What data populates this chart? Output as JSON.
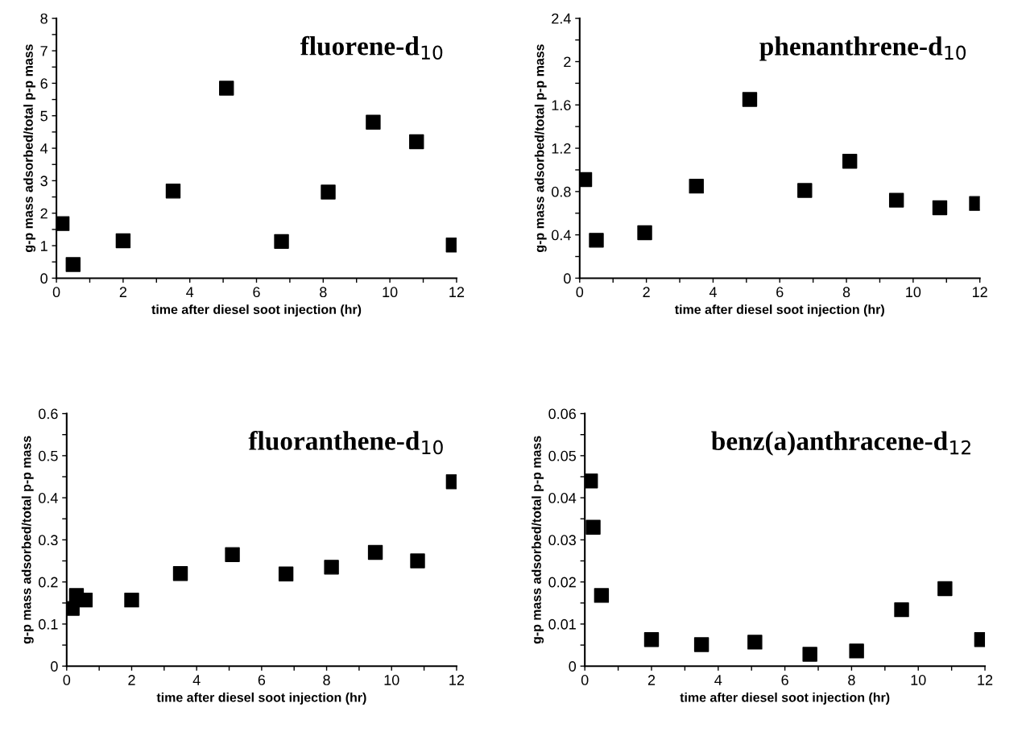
{
  "chart_data": [
    {
      "type": "scatter",
      "title": "fluorene-d$_{10}$",
      "xlabel": "time after diesel soot injection (hr)",
      "ylabel": "g-p mass adsorbed/total p-p mass",
      "marker": "square",
      "grid": false,
      "legend": false,
      "xlim": [
        0,
        12
      ],
      "ylim": [
        0,
        8
      ],
      "xticks": [
        0,
        {
          "value": 1,
          "label": null
        },
        2,
        {
          "value": 3,
          "label": null
        },
        4,
        {
          "value": 5,
          "label": null
        },
        6,
        {
          "value": 7,
          "label": null
        },
        8,
        {
          "value": 9,
          "label": null
        },
        10,
        {
          "value": 11,
          "label": null
        },
        12
      ],
      "yticks": [
        0,
        {
          "value": 0.5,
          "label": null
        },
        1,
        {
          "value": 1.5,
          "label": null
        },
        2,
        {
          "value": 2.5,
          "label": null
        },
        3,
        {
          "value": 3.5,
          "label": null
        },
        4,
        {
          "value": 4.5,
          "label": null
        },
        5,
        {
          "value": 5.5,
          "label": null
        },
        6,
        {
          "value": 6.5,
          "label": null
        },
        7,
        {
          "value": 7.5,
          "label": null
        },
        8
      ],
      "series": [
        {
          "color": "#000000",
          "x": [
            0.17,
            0.5,
            2,
            3.5,
            5.1,
            6.75,
            8.15,
            9.5,
            10.8,
            11.9
          ],
          "values": [
            1.68,
            0.42,
            1.15,
            2.68,
            5.85,
            1.13,
            2.65,
            4.8,
            4.2,
            1.02
          ]
        }
      ]
    },
    {
      "type": "scatter",
      "title": "phenanthrene-d$_{10}$",
      "xlabel": "time after diesel soot injection (hr)",
      "ylabel": "g-p mass adsorbed/total p-p mass",
      "marker": "square",
      "grid": false,
      "legend": false,
      "xlim": [
        0,
        12
      ],
      "ylim": [
        0,
        2.4
      ],
      "xticks": [
        0,
        {
          "value": 1,
          "label": null
        },
        2,
        {
          "value": 3,
          "label": null
        },
        4,
        {
          "value": 5,
          "label": null
        },
        6,
        {
          "value": 7,
          "label": null
        },
        8,
        {
          "value": 9,
          "label": null
        },
        10,
        {
          "value": 11,
          "label": null
        },
        12
      ],
      "yticks": [
        0,
        {
          "value": 0.2,
          "label": null
        },
        0.4,
        {
          "value": 0.6,
          "label": null
        },
        0.8,
        {
          "value": 1.0,
          "label": null
        },
        1.2,
        {
          "value": 1.4,
          "label": null
        },
        1.6,
        {
          "value": 1.8,
          "label": null
        },
        2,
        {
          "value": 2.2,
          "label": null
        },
        2.4
      ],
      "series": [
        {
          "color": "#000000",
          "x": [
            0.15,
            0.5,
            1.95,
            3.5,
            5.1,
            6.75,
            8.1,
            9.5,
            10.8,
            11.9
          ],
          "values": [
            0.91,
            0.35,
            0.42,
            0.85,
            1.65,
            0.81,
            1.08,
            0.72,
            0.65,
            0.69
          ]
        }
      ]
    },
    {
      "type": "scatter",
      "title": "fluoranthene-d$_{10}$",
      "xlabel": "time after diesel soot injection (hr)",
      "ylabel": "g-p mass adsorbed/total p-p mass",
      "marker": "square",
      "grid": false,
      "legend": false,
      "xlim": [
        0,
        12
      ],
      "ylim": [
        0,
        0.6
      ],
      "xticks": [
        0,
        {
          "value": 1,
          "label": null
        },
        2,
        {
          "value": 3,
          "label": null
        },
        4,
        {
          "value": 5,
          "label": null
        },
        6,
        {
          "value": 7,
          "label": null
        },
        8,
        {
          "value": 9,
          "label": null
        },
        10,
        {
          "value": 11,
          "label": null
        },
        12
      ],
      "yticks": [
        0,
        {
          "value": 0.05,
          "label": null
        },
        0.1,
        {
          "value": 0.15,
          "label": null
        },
        0.2,
        {
          "value": 0.25,
          "label": null
        },
        0.3,
        {
          "value": 0.35,
          "label": null
        },
        0.4,
        {
          "value": 0.45,
          "label": null
        },
        0.5,
        {
          "value": 0.55,
          "label": null
        },
        0.6
      ],
      "series": [
        {
          "color": "#000000",
          "x": [
            0.17,
            0.3,
            0.57,
            2,
            3.5,
            5.1,
            6.75,
            8.15,
            9.5,
            10.8,
            11.9
          ],
          "values": [
            0.137,
            0.168,
            0.157,
            0.157,
            0.22,
            0.265,
            0.219,
            0.235,
            0.27,
            0.25,
            0.438
          ]
        }
      ]
    },
    {
      "type": "scatter",
      "title": "benz(a)anthracene-d$_{12}$",
      "xlabel": "time after diesel soot injection (hr)",
      "ylabel": "g-p mass adsorbed/total p-p mass",
      "marker": "square",
      "grid": false,
      "legend": false,
      "xlim": [
        0,
        12
      ],
      "ylim": [
        0,
        0.06
      ],
      "xticks": [
        0,
        {
          "value": 1,
          "label": null
        },
        2,
        {
          "value": 3,
          "label": null
        },
        4,
        {
          "value": 5,
          "label": null
        },
        6,
        {
          "value": 7,
          "label": null
        },
        8,
        {
          "value": 9,
          "label": null
        },
        10,
        {
          "value": 11,
          "label": null
        },
        12
      ],
      "yticks": [
        0,
        {
          "value": 0.005,
          "label": null
        },
        0.01,
        {
          "value": 0.015,
          "label": null
        },
        0.02,
        {
          "value": 0.025,
          "label": null
        },
        0.03,
        {
          "value": 0.035,
          "label": null
        },
        0.04,
        {
          "value": 0.045,
          "label": null
        },
        0.05,
        {
          "value": 0.055,
          "label": null
        },
        0.06
      ],
      "series": [
        {
          "color": "#000000",
          "x": [
            0.17,
            0.25,
            0.5,
            2,
            3.5,
            5.1,
            6.75,
            8.15,
            9.5,
            10.8,
            11.9
          ],
          "values": [
            0.044,
            0.033,
            0.0168,
            0.0063,
            0.0051,
            0.0057,
            0.0028,
            0.0036,
            0.0134,
            0.0184,
            0.0063
          ]
        }
      ]
    }
  ]
}
